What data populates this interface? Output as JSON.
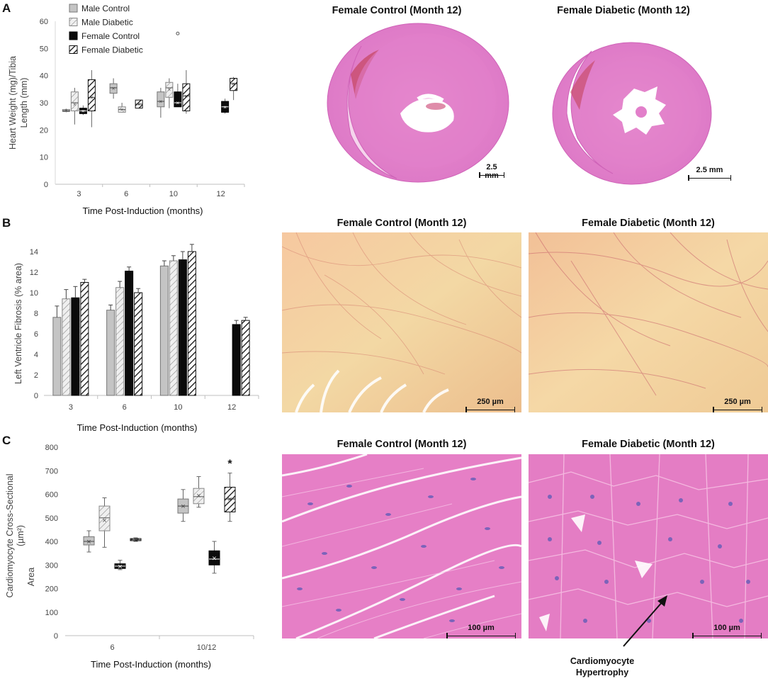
{
  "panels": {
    "A": {
      "letter": "A",
      "images": [
        {
          "title": "Female Control (Month 12)",
          "scale": "2.5 mm"
        },
        {
          "title": "Female Diabetic (Month 12)",
          "scale": "2.5 mm"
        }
      ]
    },
    "B": {
      "letter": "B",
      "images": [
        {
          "title": "Female Control (Month 12)",
          "scale": "250 µm"
        },
        {
          "title": "Female Diabetic (Month 12)",
          "scale": "250 µm"
        }
      ]
    },
    "C": {
      "letter": "C",
      "images": [
        {
          "title": "Female Control (Month 12)",
          "scale": "100 µm"
        },
        {
          "title": "Female Diabetic (Month 12)",
          "scale": "100 µm"
        }
      ],
      "annotation_line1": "Cardiomyocyte",
      "annotation_line2": "Hypertrophy"
    }
  },
  "chart_data": [
    {
      "type": "box",
      "panel": "A",
      "legend": [
        "Male Control",
        "Male Diabetic",
        "Female Control",
        "Female Diabetic"
      ],
      "categories": [
        "3",
        "6",
        "10",
        "12"
      ],
      "xlabel": "Time Post-Induction (months)",
      "ylabel_lines": [
        "Heart Weight (mg)/Tibia",
        "Length (mm)"
      ],
      "ylim": [
        0,
        60
      ],
      "yticks": [
        0,
        10,
        20,
        30,
        40,
        50,
        60
      ],
      "series": [
        {
          "name": "Male Control",
          "boxes": [
            {
              "cat": "3",
              "min": 26.5,
              "q1": 26.8,
              "median": 27.0,
              "q3": 27.5,
              "max": 27.8,
              "mean": 27.2
            },
            {
              "cat": "6",
              "min": 31.5,
              "q1": 33.5,
              "median": 35.5,
              "q3": 37.0,
              "max": 39.0,
              "mean": 35.3
            },
            {
              "cat": "10",
              "min": 24.5,
              "q1": 28.5,
              "median": 30.5,
              "q3": 34.0,
              "max": 35.5,
              "mean": 30.5
            },
            null
          ]
        },
        {
          "name": "Male Diabetic",
          "boxes": [
            {
              "cat": "3",
              "min": 22.0,
              "q1": 27.0,
              "median": 30.0,
              "q3": 34.0,
              "max": 35.5,
              "mean": 29.5
            },
            {
              "cat": "6",
              "min": 26.5,
              "q1": 26.5,
              "median": 27.5,
              "q3": 28.5,
              "max": 30.0,
              "mean": 27.5
            },
            {
              "cat": "10",
              "min": 28.0,
              "q1": 32.0,
              "median": 35.5,
              "q3": 37.5,
              "max": 39.0,
              "mean": 35.0
            },
            null
          ]
        },
        {
          "name": "Female Control",
          "boxes": [
            {
              "cat": "3",
              "min": 25.5,
              "q1": 26.0,
              "median": 27.0,
              "q3": 28.0,
              "max": 29.0,
              "mean": 27.0
            },
            null,
            {
              "cat": "10",
              "min": 28.5,
              "q1": 28.5,
              "median": 30.0,
              "q3": 34.0,
              "max": 37.0,
              "mean": 30.0,
              "outlier": 55.5
            },
            {
              "cat": "12",
              "min": 26.0,
              "q1": 26.5,
              "median": 28.5,
              "q3": 30.5,
              "max": 31.5,
              "mean": 28.5
            }
          ]
        },
        {
          "name": "Female Diabetic",
          "boxes": [
            {
              "cat": "3",
              "min": 21.0,
              "q1": 27.0,
              "median": 32.0,
              "q3": 38.5,
              "max": 42.0,
              "mean": 32.0
            },
            {
              "cat": "6",
              "min": 28.0,
              "q1": 28.0,
              "median": 29.5,
              "q3": 31.0,
              "max": 31.0,
              "mean": 29.5
            },
            {
              "cat": "10",
              "min": 26.0,
              "q1": 27.0,
              "median": 32.5,
              "q3": 37.0,
              "max": 42.0,
              "mean": 32.5
            },
            {
              "cat": "12",
              "min": 31.0,
              "q1": 34.5,
              "median": 37.0,
              "q3": 39.0,
              "max": 39.5,
              "mean": 37.0
            }
          ]
        }
      ]
    },
    {
      "type": "bar",
      "panel": "B",
      "categories": [
        "3",
        "6",
        "10",
        "12"
      ],
      "xlabel": "Time Post-Induction (months)",
      "ylabel": "Left Ventricle Fibrosis (% area)",
      "ylim": [
        0,
        14
      ],
      "yticks": [
        0,
        2,
        4,
        6,
        8,
        10,
        12,
        14
      ],
      "series": [
        {
          "name": "Male Control",
          "values": [
            7.6,
            8.3,
            12.6,
            null
          ],
          "errors": [
            1.1,
            0.5,
            0.5,
            null
          ]
        },
        {
          "name": "Male Diabetic",
          "values": [
            9.4,
            10.5,
            13.1,
            null
          ],
          "errors": [
            0.9,
            0.6,
            0.5,
            null
          ]
        },
        {
          "name": "Female Control",
          "values": [
            9.5,
            12.1,
            13.2,
            6.9
          ],
          "errors": [
            1.1,
            0.4,
            0.8,
            0.4
          ]
        },
        {
          "name": "Female Diabetic",
          "values": [
            11.0,
            10.0,
            14.0,
            7.3
          ],
          "errors": [
            0.3,
            0.4,
            0.7,
            0.3
          ]
        }
      ]
    },
    {
      "type": "box",
      "panel": "C",
      "categories": [
        "6",
        "10/12"
      ],
      "xlabel": "Time Post-Induction (months)",
      "ylabel_lines": [
        "Cardiomyocyte Cross-Sectional",
        "Area"
      ],
      "ylabel_unit": "(µm²)",
      "ylim": [
        0,
        800
      ],
      "yticks": [
        0,
        100,
        200,
        300,
        400,
        500,
        600,
        700,
        800
      ],
      "significance": {
        "category": "10/12",
        "series": "Female Diabetic",
        "label": "*"
      },
      "series": [
        {
          "name": "Male Control",
          "boxes": [
            {
              "cat": "6",
              "min": 355,
              "q1": 385,
              "median": 400,
              "q3": 420,
              "max": 445,
              "mean": 400
            },
            {
              "cat": "10/12",
              "min": 485,
              "q1": 520,
              "median": 550,
              "q3": 580,
              "max": 620,
              "mean": 550
            }
          ]
        },
        {
          "name": "Male Diabetic",
          "boxes": [
            {
              "cat": "6",
              "min": 375,
              "q1": 445,
              "median": 500,
              "q3": 550,
              "max": 585,
              "mean": 490
            },
            {
              "cat": "10/12",
              "min": 545,
              "q1": 560,
              "median": 590,
              "q3": 625,
              "max": 675,
              "mean": 595
            }
          ]
        },
        {
          "name": "Female Control",
          "boxes": [
            {
              "cat": "6",
              "min": 280,
              "q1": 285,
              "median": 295,
              "q3": 305,
              "max": 320,
              "mean": 295
            },
            {
              "cat": "10/12",
              "min": 265,
              "q1": 300,
              "median": 325,
              "q3": 360,
              "max": 400,
              "mean": 330
            }
          ]
        },
        {
          "name": "Female Diabetic",
          "boxes": [
            {
              "cat": "6",
              "min": 400,
              "q1": 403,
              "median": 407,
              "q3": 412,
              "max": 415,
              "mean": 408
            },
            {
              "cat": "10/12",
              "min": 485,
              "q1": 525,
              "median": 580,
              "q3": 630,
              "max": 690,
              "mean": 580
            }
          ]
        }
      ]
    }
  ]
}
